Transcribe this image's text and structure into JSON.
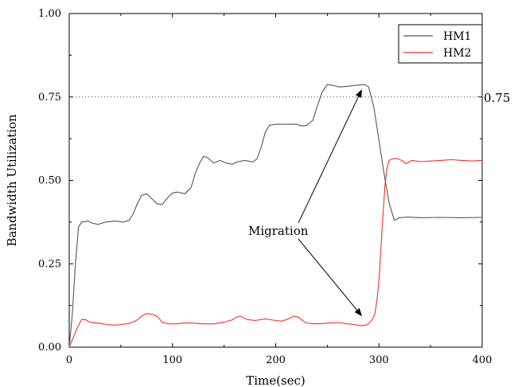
{
  "chart_data": {
    "type": "line",
    "title": "",
    "xlabel": "Time(sec)",
    "ylabel": "Bandwidth Utilization",
    "xlim": [
      0,
      400
    ],
    "ylim": [
      0.0,
      1.0
    ],
    "xticks": [
      "0",
      "100",
      "200",
      "300",
      "400"
    ],
    "yticks": [
      "0.00",
      "0.25",
      "0.50",
      "0.75",
      "1.00"
    ],
    "grid": false,
    "legend": "top-right",
    "reference_line": {
      "y": 0.75,
      "label": "0.75",
      "style": "dotted"
    },
    "annotation": {
      "text": "Migration",
      "arrow_targets": [
        [
          287,
          0.785
        ],
        [
          287,
          0.085
        ]
      ]
    },
    "series": [
      {
        "name": "HM1",
        "color": "#555555",
        "x": [
          0,
          3,
          6,
          9,
          12,
          18,
          22,
          28,
          35,
          45,
          52,
          58,
          62,
          66,
          70,
          75,
          80,
          85,
          90,
          96,
          100,
          105,
          112,
          118,
          122,
          126,
          130,
          134,
          140,
          146,
          152,
          158,
          162,
          170,
          178,
          182,
          186,
          190,
          194,
          200,
          210,
          220,
          226,
          230,
          236,
          240,
          245,
          250,
          255,
          262,
          270,
          278,
          286,
          290,
          295,
          300,
          305,
          310,
          315,
          320,
          328,
          340,
          360,
          380,
          400
        ],
        "y": [
          0.0,
          0.1,
          0.25,
          0.36,
          0.375,
          0.378,
          0.372,
          0.368,
          0.375,
          0.378,
          0.375,
          0.38,
          0.4,
          0.43,
          0.455,
          0.46,
          0.445,
          0.43,
          0.428,
          0.45,
          0.462,
          0.465,
          0.46,
          0.478,
          0.52,
          0.55,
          0.572,
          0.568,
          0.552,
          0.56,
          0.552,
          0.548,
          0.555,
          0.56,
          0.555,
          0.565,
          0.6,
          0.645,
          0.665,
          0.668,
          0.668,
          0.668,
          0.663,
          0.665,
          0.68,
          0.72,
          0.765,
          0.787,
          0.785,
          0.78,
          0.782,
          0.785,
          0.787,
          0.78,
          0.72,
          0.62,
          0.52,
          0.43,
          0.38,
          0.388,
          0.39,
          0.388,
          0.389,
          0.388,
          0.389
        ]
      },
      {
        "name": "HM2",
        "color": "#ff2a2a",
        "x": [
          0,
          4,
          8,
          12,
          16,
          20,
          28,
          36,
          44,
          50,
          56,
          62,
          66,
          70,
          74,
          78,
          82,
          86,
          90,
          96,
          104,
          112,
          120,
          130,
          140,
          150,
          158,
          162,
          166,
          172,
          180,
          190,
          200,
          206,
          212,
          218,
          222,
          226,
          230,
          240,
          250,
          260,
          270,
          276,
          282,
          286,
          290,
          294,
          296,
          298,
          300,
          302,
          304,
          306,
          308,
          310,
          314,
          318,
          322,
          326,
          332,
          340,
          350,
          360,
          370,
          380,
          390,
          400
        ],
        "y": [
          0.0,
          0.03,
          0.06,
          0.083,
          0.082,
          0.075,
          0.072,
          0.068,
          0.066,
          0.068,
          0.07,
          0.075,
          0.082,
          0.092,
          0.1,
          0.1,
          0.097,
          0.09,
          0.075,
          0.07,
          0.07,
          0.073,
          0.072,
          0.07,
          0.07,
          0.075,
          0.082,
          0.09,
          0.093,
          0.083,
          0.08,
          0.085,
          0.08,
          0.078,
          0.085,
          0.093,
          0.09,
          0.08,
          0.072,
          0.07,
          0.072,
          0.074,
          0.07,
          0.068,
          0.065,
          0.065,
          0.07,
          0.085,
          0.1,
          0.14,
          0.2,
          0.3,
          0.4,
          0.49,
          0.54,
          0.56,
          0.565,
          0.565,
          0.56,
          0.55,
          0.56,
          0.556,
          0.558,
          0.56,
          0.562,
          0.56,
          0.558,
          0.56
        ]
      }
    ]
  }
}
